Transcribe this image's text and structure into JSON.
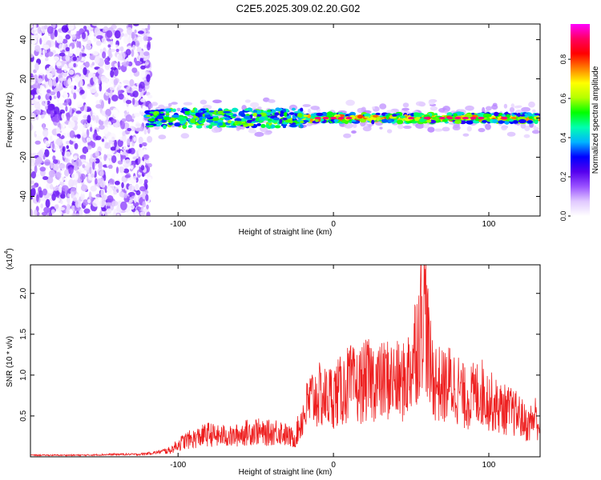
{
  "figure_title": "C2E5.2025.309.02.20.G02",
  "chart_data": [
    {
      "type": "heatmap",
      "title": "",
      "xlabel": "Height of straight line (km)",
      "ylabel": "Frequency (Hz)",
      "xlim": [
        -195,
        133
      ],
      "ylim": [
        -50,
        48
      ],
      "xticks": [
        -100,
        0,
        100
      ],
      "yticks": [
        -40,
        -20,
        0,
        20,
        40
      ],
      "colorbar": {
        "label": "Normalized spectral amplitude",
        "range": [
          0,
          0.98
        ],
        "ticks": [
          0.0,
          0.2,
          0.4,
          0.6,
          0.8
        ],
        "colormap": [
          "#ffffff",
          "#e0c8ff",
          "#9a52ff",
          "#5500ee",
          "#0000ff",
          "#00b4ff",
          "#00ffb0",
          "#00ff00",
          "#b4ff00",
          "#ffff00",
          "#ff8000",
          "#ff0000",
          "#ff0060",
          "#ff00ff"
        ]
      },
      "description_regions": [
        {
          "x_range": [
            -195,
            -120
          ],
          "freq_range": [
            -50,
            48
          ],
          "level": "noise 0.0–0.2"
        },
        {
          "x_range": [
            -120,
            133
          ],
          "freq_center": 0,
          "level": "band 0.3–0.95, red peaks near 0, 10, 70–100 km"
        }
      ]
    },
    {
      "type": "line",
      "title": "",
      "xlabel": "Height of straight line (km)",
      "ylabel": "SNR (10 * v/v)",
      "y_scale_label": "(x10",
      "y_scale_exp": "4",
      "xlim": [
        -195,
        133
      ],
      "ylim": [
        0,
        2.35
      ],
      "xticks": [
        -100,
        0,
        100
      ],
      "yticks": [
        0.5,
        1.0,
        1.5,
        2.0
      ],
      "ytick_labels": [
        "0.5",
        "1.0",
        "1.5",
        "2.0"
      ],
      "color": "#ee2020",
      "series": [
        {
          "name": "SNR",
          "x": [
            -195,
            -180,
            -160,
            -140,
            -125,
            -115,
            -105,
            -100,
            -95,
            -90,
            -85,
            -80,
            -75,
            -70,
            -65,
            -60,
            -55,
            -50,
            -45,
            -40,
            -35,
            -30,
            -25,
            -20,
            -15,
            -10,
            -5,
            0,
            5,
            10,
            15,
            20,
            25,
            30,
            35,
            40,
            45,
            50,
            52,
            55,
            57,
            58,
            60,
            62,
            65,
            70,
            75,
            80,
            85,
            90,
            95,
            100,
            105,
            110,
            115,
            120,
            125,
            130,
            133
          ],
          "values": [
            0.02,
            0.02,
            0.02,
            0.03,
            0.03,
            0.05,
            0.08,
            0.15,
            0.2,
            0.22,
            0.25,
            0.28,
            0.25,
            0.26,
            0.24,
            0.28,
            0.3,
            0.32,
            0.28,
            0.3,
            0.32,
            0.26,
            0.22,
            0.48,
            0.7,
            0.75,
            0.72,
            0.76,
            0.8,
            0.9,
            0.85,
            0.92,
            0.95,
            0.9,
            0.95,
            0.92,
            0.9,
            1.1,
            1.3,
            1.5,
            1.8,
            2.0,
            1.6,
            1.1,
            0.95,
            0.85,
            0.9,
            0.85,
            0.7,
            0.75,
            0.8,
            0.7,
            0.62,
            0.58,
            0.55,
            0.5,
            0.38,
            0.5,
            0.35
          ]
        }
      ]
    }
  ]
}
